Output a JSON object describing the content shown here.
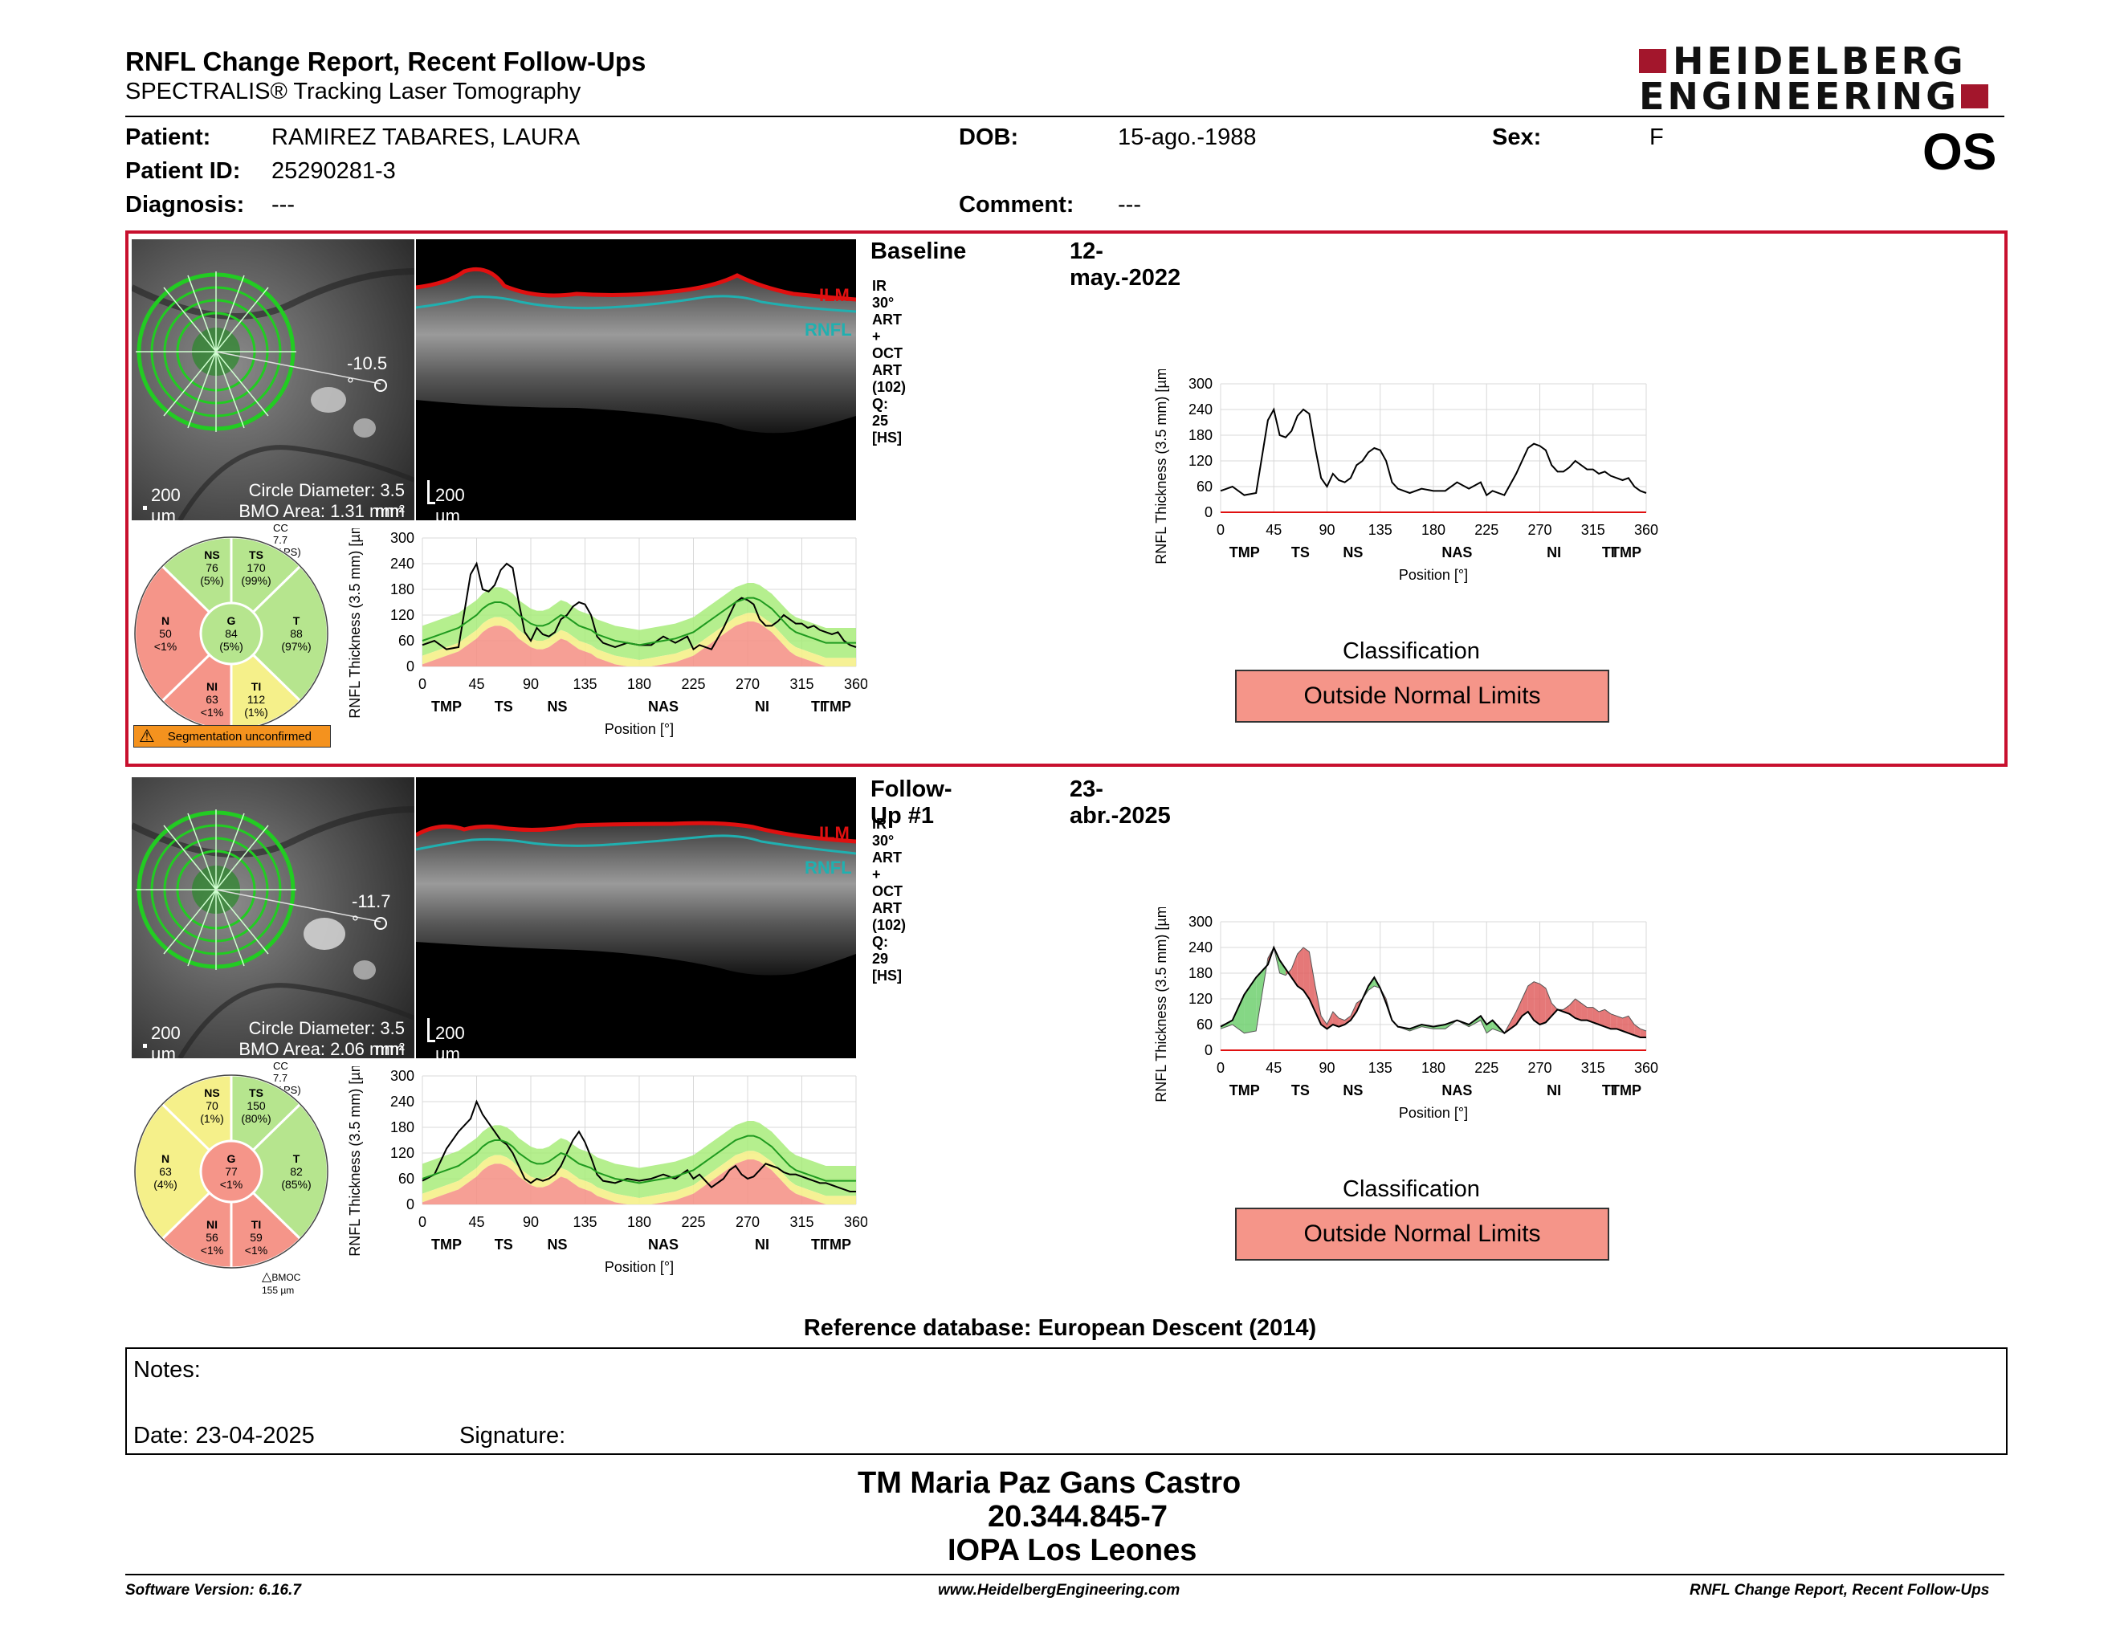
{
  "header": {
    "title": "RNFL Change Report, Recent Follow-Ups",
    "subtitle": "SPECTRALIS® Tracking Laser Tomography",
    "logo_line1": "HEIDELBERG",
    "logo_line2": "ENGINEERING",
    "eye": "OS"
  },
  "patient": {
    "patient_label": "Patient:",
    "patient_value": "RAMIREZ TABARES, LAURA",
    "dob_label": "DOB:",
    "dob_value": "15-ago.-1988",
    "sex_label": "Sex:",
    "sex_value": "F",
    "id_label": "Patient ID:",
    "id_value": "25290281-3",
    "diagnosis_label": "Diagnosis:",
    "diagnosis_value": "---",
    "comment_label": "Comment:",
    "comment_value": "---"
  },
  "exams": [
    {
      "name": "Baseline",
      "date": "12-may.-2022",
      "scan_info": "IR 30° ART + OCT ART (102) Q: 25 [HS]",
      "angle": "-10.5 °",
      "scale_fundus": "200 µm",
      "circle_diameter": "Circle Diameter: 3.5 mm",
      "bmo_area": "BMO Area: 1.31 mm²",
      "scale_bscan": "200 µm",
      "ilm": "ILM",
      "rnfl": "RNFL",
      "cc": "CC 7.7 (APS)",
      "sectors": {
        "NS": {
          "label": "NS",
          "value": "76",
          "pct": "(5%)"
        },
        "TS": {
          "label": "TS",
          "value": "170",
          "pct": "(99%)"
        },
        "N": {
          "label": "N",
          "value": "50",
          "pct": "<1%"
        },
        "G": {
          "label": "G",
          "value": "84",
          "pct": "(5%)"
        },
        "T": {
          "label": "T",
          "value": "88",
          "pct": "(97%)"
        },
        "NI": {
          "label": "NI",
          "value": "63",
          "pct": "<1%"
        },
        "TI": {
          "label": "TI",
          "value": "112",
          "pct": "(1%)"
        }
      },
      "warning": "Segmentation unconfirmed",
      "classification_title": "Classification",
      "classification": "Outside Normal Limits"
    },
    {
      "name": "Follow-Up #1",
      "date": "23-abr.-2025",
      "scan_info": "IR 30° ART + OCT ART (102) Q: 29 [HS]",
      "angle": "-11.7 °",
      "scale_fundus": "200 µm",
      "circle_diameter": "Circle Diameter: 3.5 mm",
      "bmo_area": "BMO Area: 2.06 mm²",
      "scale_bscan": "200 µm",
      "ilm": "ILM",
      "rnfl": "RNFL",
      "cc": "CC 7.7 (APS)",
      "sectors": {
        "NS": {
          "label": "NS",
          "value": "70",
          "pct": "(1%)"
        },
        "TS": {
          "label": "TS",
          "value": "150",
          "pct": "(80%)"
        },
        "N": {
          "label": "N",
          "value": "63",
          "pct": "(4%)"
        },
        "G": {
          "label": "G",
          "value": "77",
          "pct": "<1%"
        },
        "T": {
          "label": "T",
          "value": "82",
          "pct": "(85%)"
        },
        "NI": {
          "label": "NI",
          "value": "56",
          "pct": "<1%"
        },
        "TI": {
          "label": "TI",
          "value": "59",
          "pct": "<1%"
        }
      },
      "bmoc": "BMOC 155 µm",
      "classification_title": "Classification",
      "classification": "Outside Normal Limits"
    }
  ],
  "chart_data": [
    {
      "type": "line",
      "title": "",
      "ylabel": "RNFL Thickness (3.5 mm) [µm]",
      "xlabel": "Position [°]",
      "x_ticks": [
        "0",
        "45",
        "90",
        "135",
        "180",
        "225",
        "270",
        "315",
        "360"
      ],
      "regions": [
        "TMP",
        "TS",
        "NS",
        "NAS",
        "NI",
        "TI",
        "TMP"
      ],
      "y_ticks": [
        "0",
        "60",
        "120",
        "180",
        "240",
        "300"
      ],
      "xlim": [
        0,
        360
      ],
      "ylim": [
        0,
        300
      ],
      "x": [
        0,
        10,
        20,
        30,
        40,
        45,
        50,
        55,
        60,
        65,
        70,
        75,
        80,
        85,
        90,
        95,
        100,
        105,
        110,
        115,
        120,
        125,
        130,
        135,
        140,
        145,
        150,
        160,
        170,
        180,
        190,
        200,
        210,
        220,
        225,
        230,
        240,
        250,
        255,
        260,
        265,
        270,
        275,
        280,
        285,
        290,
        295,
        300,
        305,
        310,
        315,
        320,
        325,
        330,
        335,
        340,
        345,
        350,
        355,
        360
      ],
      "series": [
        {
          "values": [
            50,
            60,
            40,
            45,
            215,
            240,
            180,
            175,
            190,
            225,
            240,
            230,
            150,
            80,
            60,
            90,
            75,
            70,
            80,
            110,
            120,
            140,
            150,
            145,
            120,
            70,
            55,
            45,
            55,
            50,
            50,
            70,
            55,
            70,
            40,
            50,
            40,
            90,
            120,
            150,
            160,
            155,
            145,
            110,
            95,
            95,
            105,
            120,
            110,
            100,
            100,
            90,
            95,
            85,
            80,
            75,
            80,
            60,
            50,
            45
          ],
          "style": "baseline-black"
        },
        {
          "values": [
            60,
            70,
            80,
            90,
            110,
            120,
            135,
            145,
            150,
            150,
            145,
            135,
            120,
            110,
            100,
            95,
            95,
            100,
            110,
            120,
            115,
            105,
            95,
            90,
            85,
            75,
            70,
            60,
            55,
            50,
            55,
            60,
            65,
            75,
            80,
            90,
            110,
            130,
            140,
            150,
            155,
            160,
            160,
            155,
            145,
            135,
            120,
            105,
            90,
            80,
            75,
            70,
            65,
            60,
            55,
            55,
            55,
            55,
            55,
            55
          ],
          "style": "normative-mean"
        }
      ]
    },
    {
      "type": "line",
      "title": "",
      "ylabel": "RNFL Thickness (3.5 mm) [µm]",
      "xlabel": "Position [°]",
      "x_ticks": [
        "0",
        "45",
        "90",
        "135",
        "180",
        "225",
        "270",
        "315",
        "360"
      ],
      "regions": [
        "TMP",
        "TS",
        "NS",
        "NAS",
        "NI",
        "TI",
        "TMP"
      ],
      "y_ticks": [
        "0",
        "60",
        "120",
        "180",
        "240",
        "300"
      ],
      "xlim": [
        0,
        360
      ],
      "ylim": [
        0,
        300
      ],
      "x": [
        0,
        10,
        20,
        30,
        40,
        45,
        50,
        55,
        60,
        65,
        70,
        75,
        80,
        85,
        90,
        95,
        100,
        105,
        110,
        115,
        120,
        125,
        130,
        135,
        140,
        145,
        150,
        160,
        170,
        180,
        190,
        200,
        210,
        220,
        225,
        230,
        240,
        250,
        255,
        260,
        265,
        270,
        275,
        280,
        285,
        290,
        295,
        300,
        305,
        310,
        315,
        320,
        325,
        330,
        335,
        340,
        345,
        350,
        355,
        360
      ],
      "series": [
        {
          "values": [
            55,
            70,
            130,
            170,
            200,
            240,
            210,
            190,
            170,
            150,
            140,
            120,
            90,
            60,
            50,
            60,
            55,
            60,
            70,
            90,
            120,
            150,
            170,
            145,
            110,
            70,
            55,
            50,
            60,
            55,
            60,
            70,
            60,
            80,
            60,
            70,
            40,
            60,
            80,
            90,
            70,
            60,
            65,
            80,
            95,
            90,
            85,
            75,
            70,
            70,
            65,
            60,
            55,
            50,
            50,
            45,
            40,
            35,
            30,
            30
          ],
          "style": "followup-black"
        },
        {
          "values": [
            60,
            70,
            80,
            90,
            110,
            120,
            135,
            145,
            150,
            150,
            145,
            135,
            120,
            110,
            100,
            95,
            95,
            100,
            110,
            120,
            115,
            105,
            95,
            90,
            85,
            75,
            70,
            60,
            55,
            50,
            55,
            60,
            65,
            75,
            80,
            90,
            110,
            130,
            140,
            150,
            155,
            160,
            160,
            155,
            145,
            135,
            120,
            105,
            90,
            80,
            75,
            70,
            65,
            60,
            55,
            55,
            55,
            55,
            55,
            55
          ],
          "style": "normative-mean"
        }
      ]
    },
    {
      "type": "line",
      "title": "",
      "ylabel": "RNFL Thickness (3.5 mm) [µm]",
      "xlabel": "Position [°]",
      "x_ticks": [
        "0",
        "45",
        "90",
        "135",
        "180",
        "225",
        "270",
        "315",
        "360"
      ],
      "regions": [
        "TMP",
        "TS",
        "NS",
        "NAS",
        "NI",
        "TI",
        "TMP"
      ],
      "y_ticks": [
        "0",
        "60",
        "120",
        "180",
        "240",
        "300"
      ],
      "xlim": [
        0,
        360
      ],
      "ylim": [
        0,
        300
      ],
      "x": [
        0,
        10,
        20,
        30,
        40,
        45,
        50,
        55,
        60,
        65,
        70,
        75,
        80,
        85,
        90,
        95,
        100,
        105,
        110,
        115,
        120,
        125,
        130,
        135,
        140,
        145,
        150,
        160,
        170,
        180,
        190,
        200,
        210,
        220,
        225,
        230,
        240,
        250,
        255,
        260,
        265,
        270,
        275,
        280,
        285,
        290,
        295,
        300,
        305,
        310,
        315,
        320,
        325,
        330,
        335,
        340,
        345,
        350,
        355,
        360
      ],
      "series": [
        {
          "values": [
            50,
            60,
            40,
            45,
            215,
            240,
            180,
            175,
            190,
            225,
            240,
            230,
            150,
            80,
            60,
            90,
            75,
            70,
            80,
            110,
            120,
            140,
            150,
            145,
            120,
            70,
            55,
            45,
            55,
            50,
            50,
            70,
            55,
            70,
            40,
            50,
            40,
            90,
            120,
            150,
            160,
            155,
            145,
            110,
            95,
            95,
            105,
            120,
            110,
            100,
            100,
            90,
            95,
            85,
            80,
            75,
            80,
            60,
            50,
            45
          ],
          "style": "baseline-black"
        }
      ]
    },
    {
      "type": "line",
      "title": "",
      "ylabel": "RNFL Thickness (3.5 mm) [µm]",
      "xlabel": "Position [°]",
      "x_ticks": [
        "0",
        "45",
        "90",
        "135",
        "180",
        "225",
        "270",
        "315",
        "360"
      ],
      "regions": [
        "TMP",
        "TS",
        "NS",
        "NAS",
        "NI",
        "TI",
        "TMP"
      ],
      "y_ticks": [
        "0",
        "60",
        "120",
        "180",
        "240",
        "300"
      ],
      "xlim": [
        0,
        360
      ],
      "ylim": [
        0,
        300
      ],
      "x": [
        0,
        10,
        20,
        30,
        40,
        45,
        50,
        55,
        60,
        65,
        70,
        75,
        80,
        85,
        90,
        95,
        100,
        105,
        110,
        115,
        120,
        125,
        130,
        135,
        140,
        145,
        150,
        160,
        170,
        180,
        190,
        200,
        210,
        220,
        225,
        230,
        240,
        250,
        255,
        260,
        265,
        270,
        275,
        280,
        285,
        290,
        295,
        300,
        305,
        310,
        315,
        320,
        325,
        330,
        335,
        340,
        345,
        350,
        355,
        360
      ],
      "series": [
        {
          "values": [
            50,
            60,
            40,
            45,
            215,
            240,
            180,
            175,
            190,
            225,
            240,
            230,
            150,
            80,
            60,
            90,
            75,
            70,
            80,
            110,
            120,
            140,
            150,
            145,
            120,
            70,
            55,
            45,
            55,
            50,
            50,
            70,
            55,
            70,
            40,
            50,
            40,
            90,
            120,
            150,
            160,
            155,
            145,
            110,
            95,
            95,
            105,
            120,
            110,
            100,
            100,
            90,
            95,
            85,
            80,
            75,
            80,
            60,
            50,
            45
          ],
          "style": "compare-baseline"
        },
        {
          "values": [
            55,
            70,
            130,
            170,
            200,
            240,
            210,
            190,
            170,
            150,
            140,
            120,
            90,
            60,
            50,
            60,
            55,
            60,
            70,
            90,
            120,
            150,
            170,
            145,
            110,
            70,
            55,
            50,
            60,
            55,
            60,
            70,
            60,
            80,
            60,
            70,
            40,
            60,
            80,
            90,
            70,
            60,
            65,
            80,
            95,
            90,
            85,
            75,
            70,
            70,
            65,
            60,
            55,
            50,
            50,
            45,
            40,
            35,
            30,
            30
          ],
          "style": "followup-black"
        }
      ]
    }
  ],
  "reference_db": "Reference database: European Descent (2014)",
  "notes": {
    "label": "Notes:",
    "date": "Date: 23-04-2025",
    "signature": "Signature:"
  },
  "stamp": {
    "line1": "TM Maria Paz Gans Castro",
    "line2": "20.344.845-7",
    "line3": "IOPA Los Leones"
  },
  "footer": {
    "version": "Software Version: 6.16.7",
    "website": "www.HeidelbergEngineering.com",
    "report": "RNFL Change Report, Recent Follow-Ups"
  },
  "colors": {
    "frame_red": "#c8102e",
    "logo_red": "#a3162c",
    "outside_normal": "#f59589",
    "within_normal": "#b6e58e",
    "borderline": "#f5f08a",
    "normal_band": "#a8ec7a",
    "ilm_line": "#e01010",
    "rnfl_line": "#20b0b0"
  }
}
